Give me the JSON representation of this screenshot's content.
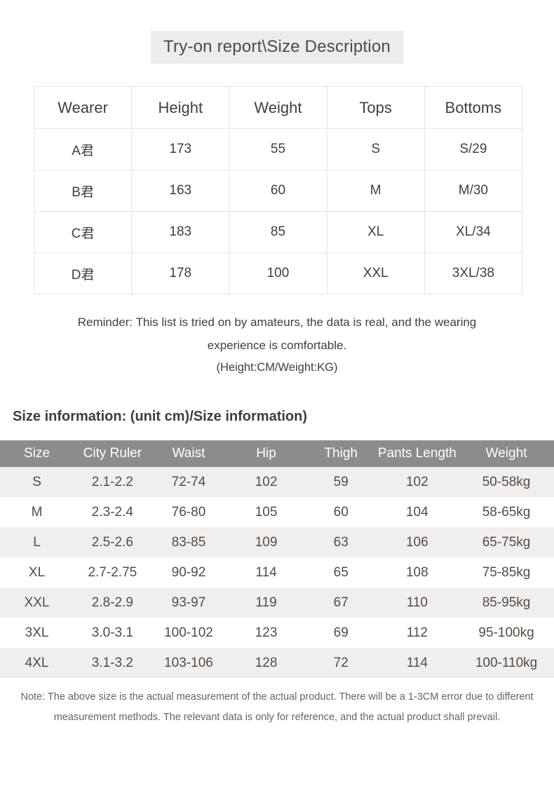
{
  "page": {
    "title": "Try-on report\\Size Description"
  },
  "tryon_table": {
    "columns": [
      "Wearer",
      "Height",
      "Weight",
      "Tops",
      "Bottoms"
    ],
    "rows": [
      [
        "A君",
        "173",
        "55",
        "S",
        "S/29"
      ],
      [
        "B君",
        "163",
        "60",
        "M",
        "M/30"
      ],
      [
        "C君",
        "183",
        "85",
        "XL",
        "XL/34"
      ],
      [
        "D君",
        "178",
        "100",
        "XXL",
        "3XL/38"
      ]
    ]
  },
  "reminder": {
    "text": "Reminder: This list is tried on by amateurs, the data is real, and the wearing experience is comfortable.",
    "unit_note": "(Height:CM/Weight:KG)"
  },
  "size_section": {
    "heading": "Size information: (unit cm)/Size information)"
  },
  "size_table": {
    "columns": [
      "Size",
      "City Ruler",
      "Waist",
      "Hip",
      "Thigh",
      "Pants Length",
      "Weight"
    ],
    "rows": [
      [
        "S",
        "2.1-2.2",
        "72-74",
        "102",
        "59",
        "102",
        "50-58kg"
      ],
      [
        "M",
        "2.3-2.4",
        "76-80",
        "105",
        "60",
        "104",
        "58-65kg"
      ],
      [
        "L",
        "2.5-2.6",
        "83-85",
        "109",
        "63",
        "106",
        "65-75kg"
      ],
      [
        "XL",
        "2.7-2.75",
        "90-92",
        "114",
        "65",
        "108",
        "75-85kg"
      ],
      [
        "XXL",
        "2.8-2.9",
        "93-97",
        "119",
        "67",
        "110",
        "85-95kg"
      ],
      [
        "3XL",
        "3.0-3.1",
        "100-102",
        "123",
        "69",
        "112",
        "95-100kg"
      ],
      [
        "4XL",
        "3.1-3.2",
        "103-106",
        "128",
        "72",
        "114",
        "100-110kg"
      ]
    ]
  },
  "note": {
    "text": "Note: The above size is the actual measurement of the actual product. There will be a 1-3CM error due to different measurement methods. The relevant data is only for reference, and the actual product shall prevail."
  },
  "colors": {
    "title_bg": "#ececec",
    "table_border": "#e5e5e5",
    "size_header_bg": "#8d8c8c",
    "size_header_text": "#ffffff",
    "stripe_bg": "#f0efee",
    "body_text": "#3f3f3f",
    "size_body_text": "#554b45",
    "note_text": "#646464"
  }
}
